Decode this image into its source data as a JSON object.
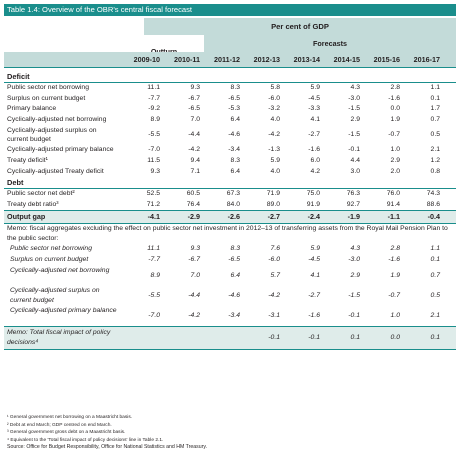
{
  "title": "Table 1.4: Overview of the OBR's central fiscal forecast",
  "header": {
    "percent_of_gdp": "Per cent of GDP",
    "forecasts": "Forecasts",
    "outturn": "Outturn",
    "years": [
      "2009-10",
      "2010-11",
      "2011-12",
      "2012-13",
      "2013-14",
      "2014-15",
      "2015-16",
      "2016-17"
    ]
  },
  "sections": {
    "deficit": "Deficit",
    "debt": "Debt",
    "output_gap_label": "Output gap"
  },
  "deficit_rows": [
    {
      "label": "Public sector net borrowing",
      "values": [
        "11.1",
        "9.3",
        "8.3",
        "5.8",
        "5.9",
        "4.3",
        "2.8",
        "1.1"
      ]
    },
    {
      "label": "Surplus on current budget",
      "values": [
        "-7.7",
        "-6.7",
        "-6.5",
        "-6.0",
        "-4.5",
        "-3.0",
        "-1.6",
        "0.1"
      ]
    },
    {
      "label": "Primary balance",
      "values": [
        "-9.2",
        "-6.5",
        "-5.3",
        "-3.2",
        "-3.3",
        "-1.5",
        "0.0",
        "1.7"
      ]
    },
    {
      "label": "Cyclically-adjusted net borrowing",
      "values": [
        "8.9",
        "7.0",
        "6.4",
        "4.0",
        "4.1",
        "2.9",
        "1.9",
        "0.7"
      ]
    },
    {
      "label": "Cyclically-adjusted surplus on current budget",
      "values": [
        "-5.5",
        "-4.4",
        "-4.6",
        "-4.2",
        "-2.7",
        "-1.5",
        "-0.7",
        "0.5"
      ],
      "two_line": true
    },
    {
      "label": "Cyclically-adjusted primary balance",
      "values": [
        "-7.0",
        "-4.2",
        "-3.4",
        "-1.3",
        "-1.6",
        "-0.1",
        "1.0",
        "2.1"
      ]
    },
    {
      "label": "Treaty deficit¹",
      "values": [
        "11.5",
        "9.4",
        "8.3",
        "5.9",
        "6.0",
        "4.4",
        "2.9",
        "1.2"
      ]
    },
    {
      "label": "Cyclically-adjusted Treaty deficit",
      "values": [
        "9.3",
        "7.1",
        "6.4",
        "4.0",
        "4.2",
        "3.0",
        "2.0",
        "0.8"
      ]
    }
  ],
  "debt_rows": [
    {
      "label": "Public sector net debt²",
      "values": [
        "52.5",
        "60.5",
        "67.3",
        "71.9",
        "75.0",
        "76.3",
        "76.0",
        "74.3"
      ]
    },
    {
      "label": "Treaty debt ratio³",
      "values": [
        "71.2",
        "76.4",
        "84.0",
        "89.0",
        "91.9",
        "92.7",
        "91.4",
        "88.6"
      ]
    }
  ],
  "output_gap_values": [
    "-4.1",
    "-2.9",
    "-2.6",
    "-2.7",
    "-2.4",
    "-1.9",
    "-1.1",
    "-0.4"
  ],
  "memo_text": "Memo: fiscal aggregates excluding the effect on public sector net investment in 2012–13 of transferring assets from the Royal Mail Pension Plan to the public sector:",
  "memo_rows": [
    {
      "label": "Public sector net borrowing",
      "values": [
        "11.1",
        "9.3",
        "8.3",
        "7.6",
        "5.9",
        "4.3",
        "2.8",
        "1.1"
      ]
    },
    {
      "label": "Surplus on current budget",
      "values": [
        "-7.7",
        "-6.7",
        "-6.5",
        "-6.0",
        "-4.5",
        "-3.0",
        "-1.6",
        "0.1"
      ]
    },
    {
      "label": "Cyclically-adjusted net borrowing",
      "values": [
        "8.9",
        "7.0",
        "6.4",
        "5.7",
        "4.1",
        "2.9",
        "1.9",
        "0.7"
      ],
      "two_line": true
    },
    {
      "label": "Cyclically-adjusted surplus on current budget",
      "values": [
        "-5.5",
        "-4.4",
        "-4.6",
        "-4.2",
        "-2.7",
        "-1.5",
        "-0.7",
        "0.5"
      ],
      "two_line": true
    },
    {
      "label": "Cyclically-adjusted primary balance",
      "values": [
        "-7.0",
        "-4.2",
        "-3.4",
        "-3.1",
        "-1.6",
        "-0.1",
        "1.0",
        "2.1"
      ],
      "two_line": true
    }
  ],
  "memo_total": {
    "label": "Memo: Total fiscal impact of policy decisions⁴",
    "values": [
      "",
      "",
      "",
      "-0.1",
      "-0.1",
      "0.1",
      "0.0",
      "0.1"
    ]
  },
  "footnotes": [
    "¹ General government net borrowing on a Maastricht basis.",
    "² Debt at end March; GDP centred on end March.",
    "³ General government gross debt on a Maastricht basis.",
    "⁴ Equivalent to the 'Total fiscal impact of policy decisions' line in Table 2.1."
  ],
  "source": "Source: Office for Budget Responsibility, Office for National Statistics and HM Treasury."
}
